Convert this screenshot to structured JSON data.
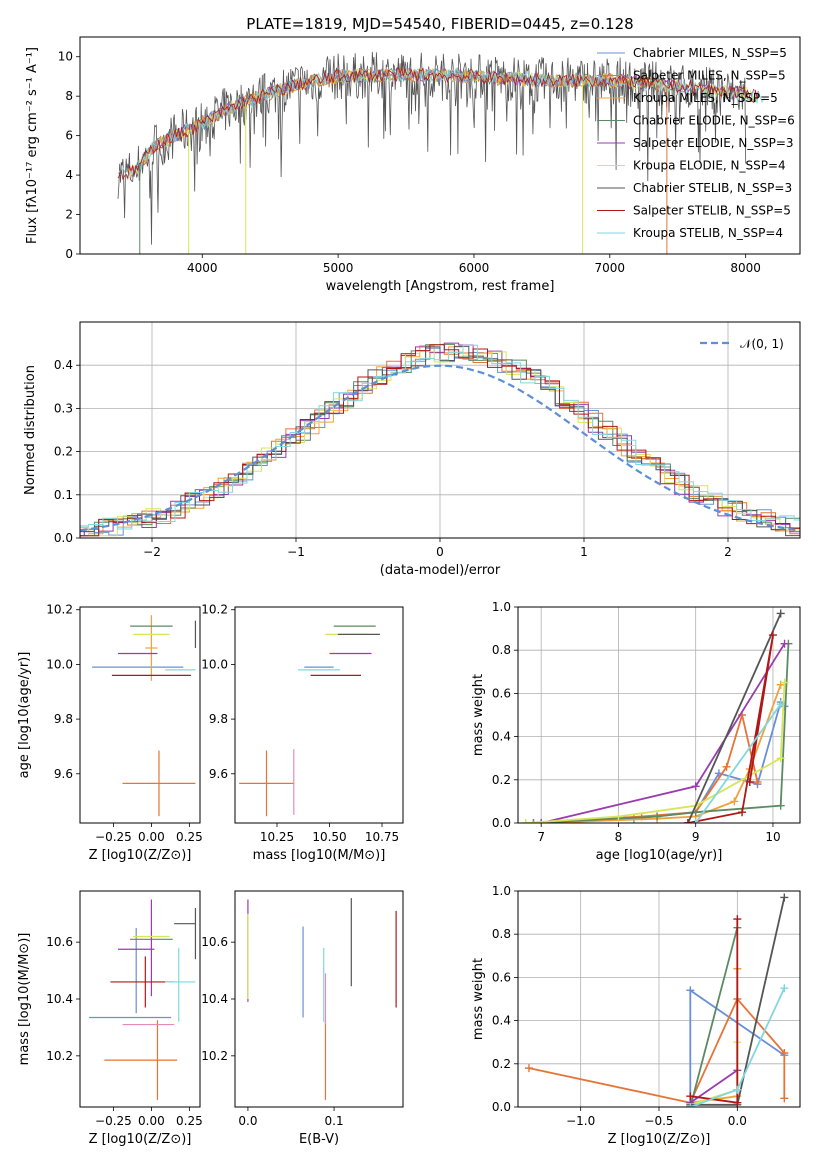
{
  "colors": {
    "chabrier_miles": "#6a8fd8",
    "salpeter_miles": "#e57436",
    "kroupa_miles": "#f0a23a",
    "chabrier_elodie": "#5b8a63",
    "salpeter_elodie": "#9a3bb0",
    "kroupa_elodie": "#d7e55a",
    "chabrier_stelib": "#555555",
    "salpeter_stelib": "#b01818",
    "kroupa_stelib": "#7fd8e0",
    "pink": "#e88ab8",
    "gauss": "#5b8fd8",
    "grid": "#b0b0b0"
  },
  "chart_data": [
    {
      "type": "line",
      "title": "PLATE=1819, MJD=54540, FIBERID=0445, z=0.128",
      "xlabel": "wavelength [Angstrom, rest frame]",
      "ylabel": "Flux [fλ10⁻¹⁷ erg cm⁻² s⁻¹ A⁻¹]",
      "xlim": [
        3100,
        8400
      ],
      "ylim": [
        0,
        11
      ],
      "xticks": [
        4000,
        5000,
        6000,
        7000,
        8000
      ],
      "yticks": [
        0,
        2,
        4,
        6,
        8,
        10
      ],
      "grid": false,
      "legend_position": "right",
      "series": [
        {
          "name": "Chabrier MILES, N_SSP=5",
          "color_key": "chabrier_miles"
        },
        {
          "name": "Salpeter MILES, N_SSP=5",
          "color_key": "salpeter_miles"
        },
        {
          "name": "Kroupa MILES, N_SSP=5",
          "color_key": "kroupa_miles"
        },
        {
          "name": "Chabrier ELODIE, N_SSP=6",
          "color_key": "chabrier_elodie"
        },
        {
          "name": "Salpeter ELODIE, N_SSP=3",
          "color_key": "salpeter_elodie"
        },
        {
          "name": "Kroupa ELODIE, N_SSP=4",
          "color_key": "kroupa_elodie"
        },
        {
          "name": "Chabrier STELIB, N_SSP=3",
          "color_key": "chabrier_stelib"
        },
        {
          "name": "Salpeter STELIB, N_SSP=5",
          "color_key": "salpeter_stelib"
        },
        {
          "name": "Kroupa STELIB, N_SSP=4",
          "color_key": "kroupa_stelib"
        }
      ],
      "continuum": {
        "x": [
          3380,
          3500,
          3650,
          3800,
          4000,
          4200,
          4400,
          4700,
          5000,
          5500,
          6000,
          6500,
          7000,
          7500,
          8000,
          8150
        ],
        "y": [
          4.0,
          4.2,
          5.5,
          6.0,
          6.6,
          7.4,
          7.9,
          8.6,
          9.0,
          9.1,
          9.0,
          8.8,
          8.8,
          8.5,
          8.1,
          7.9
        ]
      }
    },
    {
      "type": "histogram",
      "xlabel": "(data-model)/error",
      "ylabel": "Normed distribution",
      "xlim": [
        -2.5,
        2.5
      ],
      "ylim": [
        0,
        0.5
      ],
      "xticks": [
        -2,
        -1,
        0,
        1,
        2
      ],
      "yticks": [
        0.0,
        0.1,
        0.2,
        0.3,
        0.4
      ],
      "grid": true,
      "legend": "𝒩(0, 1)",
      "gaussian": {
        "mean": 0,
        "sigma": 1
      }
    },
    {
      "type": "errorbar",
      "xlabel": "Z [log10(Z/Z⊙)]",
      "ylabel": "age  [log10(age/yr)]",
      "xlim": [
        -0.47,
        0.32
      ],
      "ylim": [
        9.42,
        10.21
      ],
      "xticks": [
        -0.25,
        0.0,
        0.25
      ],
      "yticks": [
        9.6,
        9.8,
        10.0,
        10.2
      ],
      "points": [
        {
          "x": -0.09,
          "xerr": 0.3,
          "y": 9.99,
          "yerr": 0.0,
          "color_key": "chabrier_miles"
        },
        {
          "x": 0.05,
          "xerr": 0.24,
          "y": 9.565,
          "yerr": 0.12,
          "color_key": "salpeter_miles"
        },
        {
          "x": 0.0,
          "xerr": 0.04,
          "y": 10.06,
          "yerr": 0.12,
          "color_key": "kroupa_miles"
        },
        {
          "x": 0.0,
          "xerr": 0.14,
          "y": 10.14,
          "yerr": 0.0,
          "color_key": "chabrier_elodie"
        },
        {
          "x": -0.09,
          "xerr": 0.13,
          "y": 10.04,
          "yerr": 0.0,
          "color_key": "salpeter_elodie"
        },
        {
          "x": 0.0,
          "xerr": 0.12,
          "y": 10.11,
          "yerr": 0.0,
          "color_key": "kroupa_elodie"
        },
        {
          "x": 0.29,
          "xerr": 0.0,
          "y": 10.11,
          "yerr": 0.05,
          "color_key": "chabrier_stelib"
        },
        {
          "x": 0.0,
          "xerr": 0.26,
          "y": 9.96,
          "yerr": 0.0,
          "color_key": "salpeter_stelib"
        },
        {
          "x": 0.19,
          "xerr": 0.1,
          "y": 9.98,
          "yerr": 0.0,
          "color_key": "kroupa_stelib"
        }
      ]
    },
    {
      "type": "errorbar",
      "xlabel": "mass [log10(M/M⊙)]",
      "ylabel": "",
      "xlim": [
        10.05,
        10.85
      ],
      "ylim": [
        9.42,
        10.21
      ],
      "xticks": [
        10.25,
        10.5,
        10.75
      ],
      "yticks": [
        9.6,
        9.8,
        10.0,
        10.2
      ],
      "points": [
        {
          "x": 10.45,
          "xerr": 0.07,
          "y": 9.99,
          "yerr": 0.0,
          "color_key": "chabrier_miles"
        },
        {
          "x": 10.2,
          "xerr": 0.13,
          "y": 9.565,
          "yerr": 0.12,
          "color_key": "salpeter_miles"
        },
        {
          "x": 10.33,
          "xerr": 0.0,
          "y": 9.57,
          "yerr": 0.12,
          "color_key": "pink"
        },
        {
          "x": 10.62,
          "xerr": 0.1,
          "y": 10.14,
          "yerr": 0.0,
          "color_key": "chabrier_elodie"
        },
        {
          "x": 10.6,
          "xerr": 0.1,
          "y": 10.04,
          "yerr": 0.0,
          "color_key": "salpeter_elodie"
        },
        {
          "x": 10.58,
          "xerr": 0.1,
          "y": 10.11,
          "yerr": 0.0,
          "color_key": "kroupa_elodie"
        },
        {
          "x": 10.64,
          "xerr": 0.1,
          "y": 10.11,
          "yerr": 0.0,
          "color_key": "chabrier_stelib"
        },
        {
          "x": 10.53,
          "xerr": 0.12,
          "y": 9.96,
          "yerr": 0.0,
          "color_key": "salpeter_stelib"
        },
        {
          "x": 10.45,
          "xerr": 0.1,
          "y": 9.98,
          "yerr": 0.0,
          "color_key": "kroupa_stelib"
        }
      ]
    },
    {
      "type": "line",
      "xlabel": "age  [log10(age/yr)]",
      "ylabel": "mass weight",
      "xlim": [
        6.7,
        10.35
      ],
      "ylim": [
        0,
        1.0
      ],
      "xticks": [
        7,
        8,
        9,
        10
      ],
      "yticks": [
        0.0,
        0.2,
        0.4,
        0.6,
        0.8,
        1.0
      ],
      "grid": true,
      "series": [
        {
          "color_key": "chabrier_miles",
          "x": [
            7.0,
            8.2,
            9.0,
            9.3,
            9.8,
            10.1,
            10.15
          ],
          "y": [
            0.0,
            0.02,
            0.05,
            0.23,
            0.18,
            0.56,
            0.54
          ]
        },
        {
          "color_key": "salpeter_miles",
          "x": [
            6.9,
            8.3,
            9.0,
            9.4,
            9.6,
            9.8
          ],
          "y": [
            0.0,
            0.03,
            0.05,
            0.26,
            0.5,
            0.19
          ]
        },
        {
          "color_key": "kroupa_miles",
          "x": [
            7.0,
            8.5,
            9.0,
            9.5,
            9.7,
            10.1
          ],
          "y": [
            0.0,
            0.02,
            0.03,
            0.1,
            0.25,
            0.64
          ]
        },
        {
          "color_key": "chabrier_elodie",
          "x": [
            6.9,
            8.5,
            9.0,
            10.1,
            10.2
          ],
          "y": [
            0.0,
            0.03,
            0.05,
            0.08,
            0.83
          ]
        },
        {
          "color_key": "salpeter_elodie",
          "x": [
            7.0,
            9.0,
            10.15
          ],
          "y": [
            0.0,
            0.17,
            0.83
          ]
        },
        {
          "color_key": "kroupa_elodie",
          "x": [
            6.8,
            8.0,
            9.0,
            10.1,
            10.15
          ],
          "y": [
            0.0,
            0.03,
            0.08,
            0.3,
            0.65
          ]
        },
        {
          "color_key": "chabrier_stelib",
          "x": [
            8.9,
            10.1
          ],
          "y": [
            0.0,
            0.97
          ]
        },
        {
          "color_key": "salpeter_stelib",
          "x": [
            8.9,
            9.6,
            10.0,
            9.7
          ],
          "y": [
            0.0,
            0.05,
            0.87,
            0.19
          ]
        },
        {
          "color_key": "kroupa_stelib",
          "x": [
            9.0,
            10.1
          ],
          "y": [
            0.0,
            0.55
          ]
        }
      ]
    },
    {
      "type": "errorbar",
      "xlabel": "Z [log10(Z/Z⊙)]",
      "ylabel": "mass [log10(M/M⊙)]",
      "xlim": [
        -0.47,
        0.32
      ],
      "ylim": [
        10.02,
        10.78
      ],
      "xticks": [
        -0.25,
        0.0,
        0.25
      ],
      "yticks": [
        10.2,
        10.4,
        10.6
      ],
      "points": [
        {
          "x": -0.14,
          "xerr": 0.27,
          "y": 10.335,
          "yerr": 0.0,
          "color_key": "chabrier_miles"
        },
        {
          "x": -0.1,
          "xerr": 0.0,
          "y": 10.5,
          "yerr": 0.15,
          "color_key": "chabrier_miles"
        },
        {
          "x": -0.07,
          "xerr": 0.24,
          "y": 10.185,
          "yerr": 0.0,
          "color_key": "salpeter_miles"
        },
        {
          "x": 0.04,
          "xerr": 0.0,
          "y": 10.185,
          "yerr": 0.14,
          "color_key": "salpeter_miles"
        },
        {
          "x": -0.02,
          "xerr": 0.17,
          "y": 10.31,
          "yerr": 0.0,
          "color_key": "pink"
        },
        {
          "x": 0.0,
          "xerr": 0.14,
          "y": 10.61,
          "yerr": 0.0,
          "color_key": "chabrier_elodie"
        },
        {
          "x": -0.1,
          "xerr": 0.12,
          "y": 10.575,
          "yerr": 0.0,
          "color_key": "salpeter_elodie"
        },
        {
          "x": 0.0,
          "xerr": 0.0,
          "y": 10.58,
          "yerr": 0.17,
          "color_key": "salpeter_elodie"
        },
        {
          "x": 0.0,
          "xerr": 0.12,
          "y": 10.62,
          "yerr": 0.0,
          "color_key": "kroupa_elodie"
        },
        {
          "x": 0.29,
          "xerr": 0.0,
          "y": 10.63,
          "yerr": 0.09,
          "color_key": "chabrier_stelib"
        },
        {
          "x": 0.22,
          "xerr": 0.07,
          "y": 10.665,
          "yerr": 0.0,
          "color_key": "chabrier_stelib"
        },
        {
          "x": -0.06,
          "xerr": 0.21,
          "y": 10.46,
          "yerr": 0.0,
          "color_key": "salpeter_stelib"
        },
        {
          "x": -0.04,
          "xerr": 0.0,
          "y": 10.46,
          "yerr": 0.09,
          "color_key": "salpeter_stelib"
        },
        {
          "x": 0.19,
          "xerr": 0.1,
          "y": 10.46,
          "yerr": 0.0,
          "color_key": "kroupa_stelib"
        },
        {
          "x": 0.18,
          "xerr": 0.0,
          "y": 10.45,
          "yerr": 0.13,
          "color_key": "kroupa_stelib"
        }
      ]
    },
    {
      "type": "errorbar",
      "xlabel": "E(B-V)",
      "ylabel": "",
      "xlim": [
        -0.015,
        0.18
      ],
      "ylim": [
        10.02,
        10.78
      ],
      "xticks": [
        0.0,
        0.1
      ],
      "yticks": [
        10.2,
        10.4,
        10.6
      ],
      "points": [
        {
          "x": 0.0,
          "xerr": 0.0,
          "y": 10.57,
          "yerr": 0.18,
          "color_key": "salpeter_elodie"
        },
        {
          "x": 0.0,
          "xerr": 0.0,
          "y": 10.55,
          "yerr": 0.15,
          "color_key": "kroupa_elodie"
        },
        {
          "x": 0.064,
          "xerr": 0.0,
          "y": 10.495,
          "yerr": 0.16,
          "color_key": "chabrier_miles"
        },
        {
          "x": 0.09,
          "xerr": 0.0,
          "y": 10.185,
          "yerr": 0.14,
          "color_key": "salpeter_miles"
        },
        {
          "x": 0.088,
          "xerr": 0.0,
          "y": 10.45,
          "yerr": 0.13,
          "color_key": "kroupa_stelib"
        },
        {
          "x": 0.09,
          "xerr": 0.0,
          "y": 10.4,
          "yerr": 0.09,
          "color_key": "pink"
        },
        {
          "x": 0.12,
          "xerr": 0.0,
          "y": 10.6,
          "yerr": 0.155,
          "color_key": "chabrier_stelib"
        },
        {
          "x": 0.172,
          "xerr": 0.0,
          "y": 10.54,
          "yerr": 0.17,
          "color_key": "salpeter_stelib"
        }
      ]
    },
    {
      "type": "line",
      "xlabel": "Z [log10(Z/Z⊙)]",
      "ylabel": "mass weight",
      "xlim": [
        -1.4,
        0.4
      ],
      "ylim": [
        0,
        1.0
      ],
      "xticks": [
        -1.0,
        -0.5,
        0.0
      ],
      "yticks": [
        0.0,
        0.2,
        0.4,
        0.6,
        0.8,
        1.0
      ],
      "grid": true,
      "series": [
        {
          "color_key": "chabrier_miles",
          "x": [
            -0.3,
            -0.3,
            0.3
          ],
          "y": [
            0.0,
            0.54,
            0.24
          ]
        },
        {
          "color_key": "salpeter_miles",
          "x": [
            -1.33,
            -0.3,
            0.0,
            0.3,
            0.3
          ],
          "y": [
            0.18,
            0.02,
            0.5,
            0.25,
            0.04
          ]
        },
        {
          "color_key": "kroupa_miles",
          "x": [
            -0.3,
            0.0,
            0.0
          ],
          "y": [
            0.02,
            0.05,
            0.64
          ]
        },
        {
          "color_key": "chabrier_elodie",
          "x": [
            -0.3,
            0.0
          ],
          "y": [
            0.0,
            0.83
          ]
        },
        {
          "color_key": "salpeter_elodie",
          "x": [
            -0.3,
            0.0
          ],
          "y": [
            0.02,
            0.17
          ]
        },
        {
          "color_key": "kroupa_elodie",
          "x": [
            -0.3,
            0.0,
            0.0
          ],
          "y": [
            0.01,
            0.08,
            0.3
          ]
        },
        {
          "color_key": "chabrier_stelib",
          "x": [
            -0.3,
            0.0,
            0.3
          ],
          "y": [
            0.01,
            0.01,
            0.97
          ]
        },
        {
          "color_key": "salpeter_stelib",
          "x": [
            -0.3,
            0.0,
            0.0
          ],
          "y": [
            0.05,
            0.02,
            0.87
          ]
        },
        {
          "color_key": "kroupa_stelib",
          "x": [
            -0.3,
            0.0,
            0.3
          ],
          "y": [
            0.0,
            0.08,
            0.55
          ]
        }
      ]
    }
  ]
}
